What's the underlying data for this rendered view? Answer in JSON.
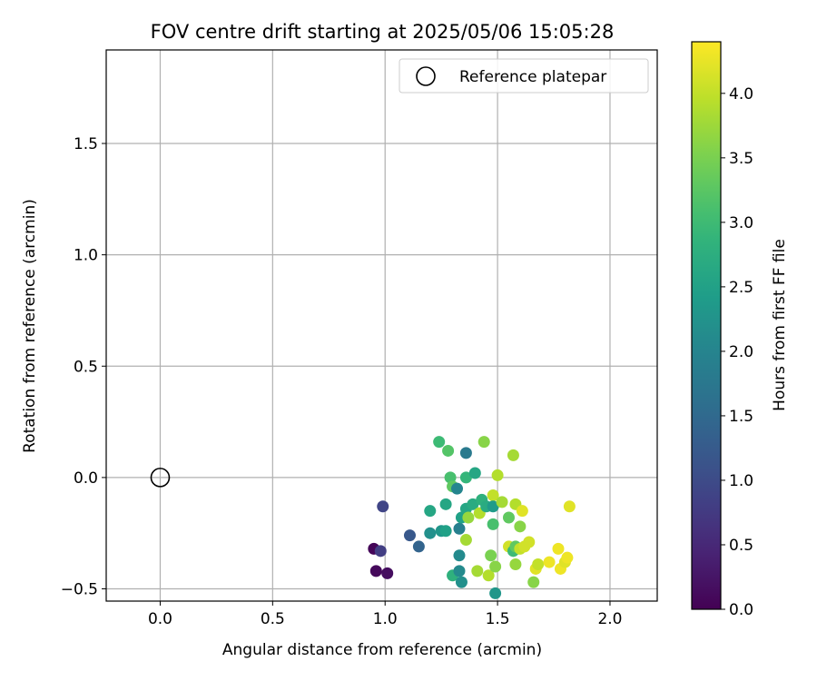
{
  "chart_data": {
    "type": "scatter",
    "title": "FOV centre drift starting at 2025/05/06 15:05:28",
    "xlabel": "Angular distance from reference (arcmin)",
    "ylabel": "Rotation from reference (arcmin)",
    "xlim": [
      -0.24,
      2.21
    ],
    "ylim": [
      -0.555,
      1.92
    ],
    "xticks": [
      0.0,
      0.5,
      1.0,
      1.5,
      2.0
    ],
    "xtick_labels": [
      "0.0",
      "0.5",
      "1.0",
      "1.5",
      "2.0"
    ],
    "yticks": [
      -0.5,
      0.0,
      0.5,
      1.0,
      1.5
    ],
    "ytick_labels": [
      "−0.5",
      "0.0",
      "0.5",
      "1.0",
      "1.5"
    ],
    "grid": true,
    "legend": {
      "location": "upper right",
      "entries": [
        "Reference platepar"
      ]
    },
    "reference_point": {
      "x": 0.0,
      "y": 0.0,
      "marker": "open circle"
    },
    "colorbar": {
      "label": "Hours from first FF file",
      "colormap": "viridis",
      "range": [
        0.0,
        4.4
      ],
      "ticks": [
        0.0,
        0.5,
        1.0,
        1.5,
        2.0,
        2.5,
        3.0,
        3.5,
        4.0
      ],
      "tick_labels": [
        "0.0",
        "0.5",
        "1.0",
        "1.5",
        "2.0",
        "2.5",
        "3.0",
        "3.5",
        "4.0"
      ]
    },
    "series": [
      {
        "points": [
          {
            "x": 0.95,
            "y": -0.32,
            "c": 0.05
          },
          {
            "x": 0.96,
            "y": -0.42,
            "c": 0.1
          },
          {
            "x": 1.01,
            "y": -0.43,
            "c": 0.15
          },
          {
            "x": 0.98,
            "y": -0.33,
            "c": 0.8
          },
          {
            "x": 0.99,
            "y": -0.13,
            "c": 0.9
          },
          {
            "x": 1.11,
            "y": -0.26,
            "c": 1.2
          },
          {
            "x": 1.15,
            "y": -0.31,
            "c": 1.4
          },
          {
            "x": 1.2,
            "y": -0.25,
            "c": 2.2
          },
          {
            "x": 1.2,
            "y": -0.15,
            "c": 2.6
          },
          {
            "x": 1.25,
            "y": -0.24,
            "c": 2.3
          },
          {
            "x": 1.27,
            "y": -0.24,
            "c": 2.5
          },
          {
            "x": 1.27,
            "y": -0.12,
            "c": 2.6
          },
          {
            "x": 1.24,
            "y": 0.16,
            "c": 3.0
          },
          {
            "x": 1.28,
            "y": 0.12,
            "c": 3.2
          },
          {
            "x": 1.29,
            "y": 0.0,
            "c": 3.1
          },
          {
            "x": 1.3,
            "y": -0.04,
            "c": 3.3
          },
          {
            "x": 1.32,
            "y": -0.05,
            "c": 2.0
          },
          {
            "x": 1.33,
            "y": -0.23,
            "c": 1.9
          },
          {
            "x": 1.33,
            "y": -0.35,
            "c": 2.1
          },
          {
            "x": 1.3,
            "y": -0.44,
            "c": 2.8
          },
          {
            "x": 1.33,
            "y": -0.42,
            "c": 2.1
          },
          {
            "x": 1.34,
            "y": -0.47,
            "c": 2.2
          },
          {
            "x": 1.34,
            "y": -0.18,
            "c": 2.5
          },
          {
            "x": 1.36,
            "y": -0.14,
            "c": 2.6
          },
          {
            "x": 1.36,
            "y": 0.0,
            "c": 2.9
          },
          {
            "x": 1.36,
            "y": 0.11,
            "c": 1.8
          },
          {
            "x": 1.37,
            "y": -0.18,
            "c": 3.7
          },
          {
            "x": 1.36,
            "y": -0.28,
            "c": 3.8
          },
          {
            "x": 1.39,
            "y": -0.12,
            "c": 2.7
          },
          {
            "x": 1.4,
            "y": 0.02,
            "c": 2.6
          },
          {
            "x": 1.41,
            "y": -0.42,
            "c": 3.8
          },
          {
            "x": 1.42,
            "y": -0.16,
            "c": 3.9
          },
          {
            "x": 1.43,
            "y": -0.1,
            "c": 2.8
          },
          {
            "x": 1.44,
            "y": 0.16,
            "c": 3.6
          },
          {
            "x": 1.45,
            "y": -0.13,
            "c": 2.7
          },
          {
            "x": 1.46,
            "y": -0.44,
            "c": 3.9
          },
          {
            "x": 1.47,
            "y": -0.35,
            "c": 3.5
          },
          {
            "x": 1.48,
            "y": -0.08,
            "c": 4.0
          },
          {
            "x": 1.48,
            "y": -0.13,
            "c": 2.4
          },
          {
            "x": 1.48,
            "y": -0.21,
            "c": 3.1
          },
          {
            "x": 1.49,
            "y": -0.52,
            "c": 2.3
          },
          {
            "x": 1.49,
            "y": -0.4,
            "c": 3.6
          },
          {
            "x": 1.5,
            "y": 0.01,
            "c": 3.9
          },
          {
            "x": 1.52,
            "y": -0.11,
            "c": 3.8
          },
          {
            "x": 1.55,
            "y": -0.18,
            "c": 3.3
          },
          {
            "x": 1.55,
            "y": -0.31,
            "c": 4.1
          },
          {
            "x": 1.57,
            "y": 0.1,
            "c": 3.8
          },
          {
            "x": 1.57,
            "y": -0.33,
            "c": 3.0
          },
          {
            "x": 1.58,
            "y": -0.31,
            "c": 3.3
          },
          {
            "x": 1.58,
            "y": -0.12,
            "c": 3.9
          },
          {
            "x": 1.58,
            "y": -0.39,
            "c": 3.7
          },
          {
            "x": 1.6,
            "y": -0.22,
            "c": 3.6
          },
          {
            "x": 1.61,
            "y": -0.15,
            "c": 4.2
          },
          {
            "x": 1.6,
            "y": -0.32,
            "c": 4.0
          },
          {
            "x": 1.62,
            "y": -0.31,
            "c": 4.1
          },
          {
            "x": 1.64,
            "y": -0.29,
            "c": 4.1
          },
          {
            "x": 1.66,
            "y": -0.47,
            "c": 3.6
          },
          {
            "x": 1.67,
            "y": -0.41,
            "c": 4.2
          },
          {
            "x": 1.68,
            "y": -0.39,
            "c": 4.0
          },
          {
            "x": 1.73,
            "y": -0.38,
            "c": 4.3
          },
          {
            "x": 1.77,
            "y": -0.32,
            "c": 4.3
          },
          {
            "x": 1.78,
            "y": -0.41,
            "c": 4.3
          },
          {
            "x": 1.8,
            "y": -0.38,
            "c": 4.2
          },
          {
            "x": 1.81,
            "y": -0.36,
            "c": 4.3
          },
          {
            "x": 1.82,
            "y": -0.13,
            "c": 4.2
          }
        ]
      }
    ]
  }
}
